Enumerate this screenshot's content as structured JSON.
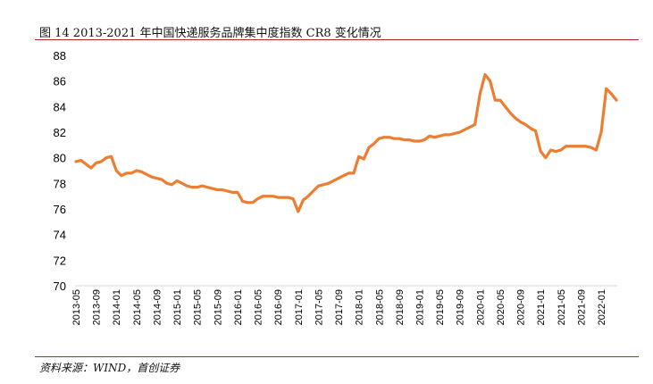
{
  "title": "图 14 2013-2021 年中国快递服务品牌集中度指数 CR8 变化情况",
  "source": "资料来源：WIND，首创证券",
  "colors": {
    "line": "#ed7d31",
    "rule": "#b3262b",
    "axis": "#d9d9d9",
    "text": "#000000"
  },
  "chart_data": {
    "type": "line",
    "title": "",
    "xlabel": "",
    "ylabel": "",
    "ylim": [
      70,
      88
    ],
    "yticks": [
      70,
      72,
      74,
      76,
      78,
      80,
      82,
      84,
      86,
      88
    ],
    "xticks": [
      "2013-05",
      "2013-09",
      "2014-01",
      "2014-05",
      "2014-09",
      "2015-01",
      "2015-05",
      "2015-09",
      "2016-01",
      "2016-05",
      "2016-09",
      "2017-01",
      "2017-05",
      "2017-09",
      "2018-01",
      "2018-05",
      "2018-09",
      "2019-01",
      "2019-05",
      "2019-09",
      "2020-01",
      "2020-05",
      "2020-09",
      "2021-01",
      "2021-05",
      "2021-09",
      "2022-01"
    ],
    "grid": false,
    "legend": "none",
    "series": [
      {
        "start": "2013-05",
        "frequency": "monthly",
        "values": [
          79.7,
          79.8,
          79.5,
          79.2,
          79.6,
          79.7,
          80.0,
          80.1,
          79.0,
          78.6,
          78.8,
          78.8,
          79.0,
          78.9,
          78.7,
          78.5,
          78.4,
          78.3,
          78.0,
          77.9,
          78.2,
          78.0,
          77.8,
          77.7,
          77.7,
          77.8,
          77.7,
          77.6,
          77.5,
          77.5,
          77.4,
          77.3,
          77.3,
          76.6,
          76.5,
          76.5,
          76.8,
          77.0,
          77.0,
          77.0,
          76.9,
          76.9,
          76.9,
          76.8,
          75.8,
          76.7,
          77.0,
          77.4,
          77.8,
          77.9,
          78.0,
          78.2,
          78.4,
          78.6,
          78.8,
          78.8,
          80.1,
          79.9,
          80.8,
          81.1,
          81.5,
          81.6,
          81.6,
          81.5,
          81.5,
          81.4,
          81.4,
          81.3,
          81.3,
          81.4,
          81.7,
          81.6,
          81.7,
          81.8,
          81.8,
          81.9,
          82.0,
          82.2,
          82.4,
          82.6,
          85.0,
          86.5,
          86.0,
          84.5,
          84.5,
          84.0,
          83.5,
          83.1,
          82.8,
          82.6,
          82.3,
          82.1,
          80.5,
          80.0,
          80.6,
          80.5,
          80.6,
          80.9,
          80.9,
          80.9,
          80.9,
          80.9,
          80.8,
          80.6,
          82.0,
          85.4,
          85.0,
          84.5
        ]
      }
    ]
  }
}
